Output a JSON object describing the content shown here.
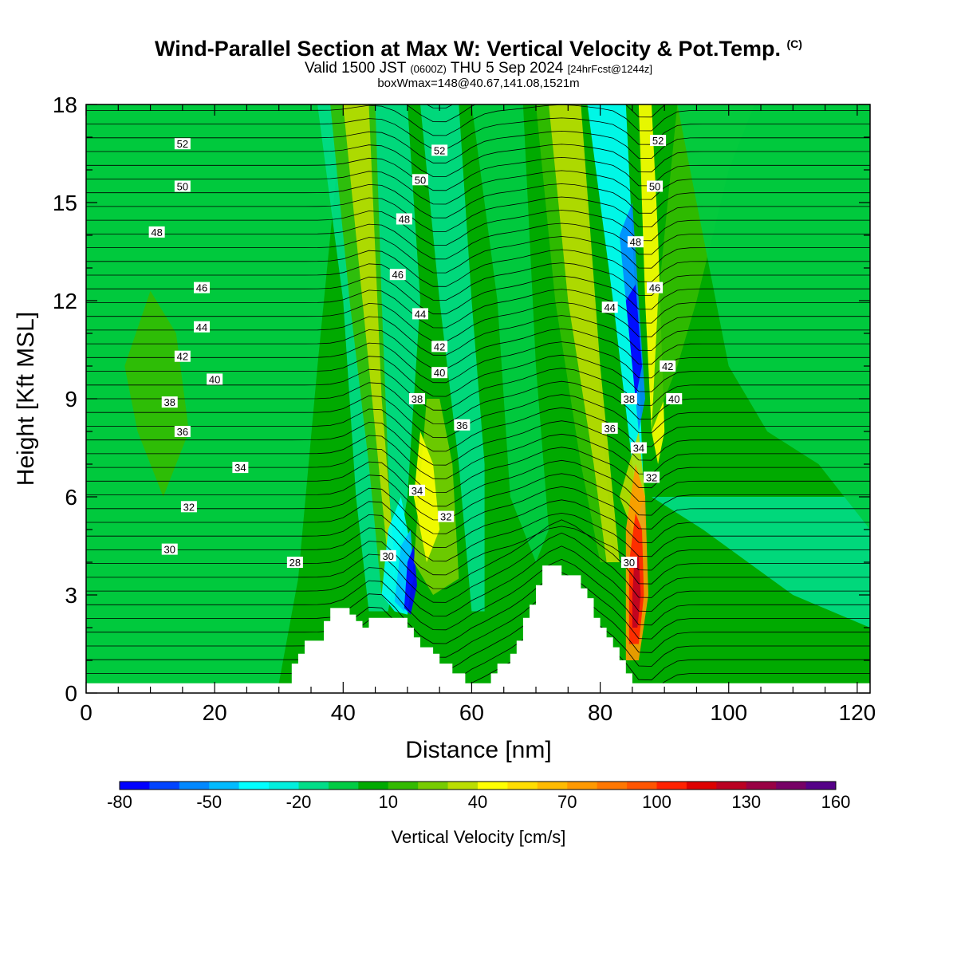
{
  "title": {
    "main": "Wind-Parallel Section at Max W: Vertical Velocity & Pot.Temp.",
    "copyright": "(C)",
    "valid_prefix": "Valid 1500 JST",
    "valid_z": "(0600Z)",
    "valid_date": "THU 5 Sep 2024",
    "fcst": "[24hrFcst@1244z]",
    "box": "boxWmax=148@40.67,141.08,1521m"
  },
  "chart_data": {
    "type": "heatmap",
    "xlabel": "Distance [nm]",
    "ylabel": "Height [Kft MSL]",
    "xlim": [
      0,
      122
    ],
    "ylim": [
      0,
      18
    ],
    "x_ticks": [
      0,
      20,
      40,
      60,
      80,
      100,
      120
    ],
    "y_ticks": [
      0,
      3,
      6,
      9,
      12,
      15,
      18
    ],
    "colorbar": {
      "label": "Vertical Velocity [cm/s]",
      "tick_labels": [
        -80,
        -50,
        -20,
        10,
        40,
        70,
        100,
        130,
        160
      ],
      "colors": [
        "#0000ff",
        "#0044ff",
        "#0088ff",
        "#00bbff",
        "#00ffff",
        "#00eedd",
        "#00dd88",
        "#00cc44",
        "#00aa00",
        "#33bb00",
        "#77cc00",
        "#bbdd00",
        "#ffff00",
        "#ffdd00",
        "#ffbb00",
        "#ff9900",
        "#ff7700",
        "#ff5500",
        "#ff2200",
        "#dd0000",
        "#bb0022",
        "#990044",
        "#770066",
        "#550088"
      ]
    },
    "terrain": [
      [
        31,
        0
      ],
      [
        31,
        0.3
      ],
      [
        32,
        0.3
      ],
      [
        32,
        0.9
      ],
      [
        33,
        0.9
      ],
      [
        33,
        1.2
      ],
      [
        34,
        1.2
      ],
      [
        34,
        1.6
      ],
      [
        37,
        1.6
      ],
      [
        37,
        2.2
      ],
      [
        38,
        2.2
      ],
      [
        38,
        2.6
      ],
      [
        41,
        2.6
      ],
      [
        41,
        2.4
      ],
      [
        42,
        2.4
      ],
      [
        42,
        2.2
      ],
      [
        43,
        2.2
      ],
      [
        43,
        2.0
      ],
      [
        44,
        2.0
      ],
      [
        44,
        2.3
      ],
      [
        50,
        2.3
      ],
      [
        50,
        2.0
      ],
      [
        51,
        2.0
      ],
      [
        51,
        1.7
      ],
      [
        52,
        1.7
      ],
      [
        52,
        1.4
      ],
      [
        54,
        1.4
      ],
      [
        54,
        1.2
      ],
      [
        55,
        1.2
      ],
      [
        55,
        0.9
      ],
      [
        57,
        0.9
      ],
      [
        57,
        0.6
      ],
      [
        59,
        0.6
      ],
      [
        59,
        0.3
      ],
      [
        60,
        0.3
      ],
      [
        60,
        0.0
      ],
      [
        61,
        0.0
      ],
      [
        61,
        0.3
      ],
      [
        63,
        0.3
      ],
      [
        63,
        0.6
      ],
      [
        64,
        0.6
      ],
      [
        64,
        0.9
      ],
      [
        66,
        0.9
      ],
      [
        66,
        1.2
      ],
      [
        67,
        1.2
      ],
      [
        67,
        1.6
      ],
      [
        68,
        1.6
      ],
      [
        68,
        2.3
      ],
      [
        69,
        2.3
      ],
      [
        69,
        2.7
      ],
      [
        70,
        2.7
      ],
      [
        70,
        3.3
      ],
      [
        71,
        3.3
      ],
      [
        71,
        3.9
      ],
      [
        74,
        3.9
      ],
      [
        74,
        3.6
      ],
      [
        77,
        3.6
      ],
      [
        77,
        3.2
      ],
      [
        78,
        3.2
      ],
      [
        78,
        2.9
      ],
      [
        79,
        2.9
      ],
      [
        79,
        2.3
      ],
      [
        80,
        2.3
      ],
      [
        80,
        2.0
      ],
      [
        81,
        2.0
      ],
      [
        81,
        1.7
      ],
      [
        82,
        1.7
      ],
      [
        82,
        1.4
      ],
      [
        83,
        1.4
      ],
      [
        83,
        1.0
      ],
      [
        84,
        1.0
      ],
      [
        84,
        0.6
      ],
      [
        85,
        0.6
      ],
      [
        85,
        0.3
      ],
      [
        86,
        0.3
      ],
      [
        86,
        0
      ]
    ],
    "theta_labels": [
      {
        "text": "52",
        "x": 15,
        "y": 16.8
      },
      {
        "text": "50",
        "x": 15,
        "y": 15.5
      },
      {
        "text": "48",
        "x": 11,
        "y": 14.1
      },
      {
        "text": "46",
        "x": 18,
        "y": 12.4
      },
      {
        "text": "44",
        "x": 18,
        "y": 11.2
      },
      {
        "text": "42",
        "x": 15,
        "y": 10.3
      },
      {
        "text": "40",
        "x": 20,
        "y": 9.6
      },
      {
        "text": "38",
        "x": 13,
        "y": 8.9
      },
      {
        "text": "36",
        "x": 15,
        "y": 8.0
      },
      {
        "text": "34",
        "x": 24,
        "y": 6.9
      },
      {
        "text": "32",
        "x": 16,
        "y": 5.7
      },
      {
        "text": "30",
        "x": 13,
        "y": 4.4
      },
      {
        "text": "28",
        "x": 32.5,
        "y": 4.0
      },
      {
        "text": "52",
        "x": 55,
        "y": 16.6
      },
      {
        "text": "50",
        "x": 52,
        "y": 15.7
      },
      {
        "text": "48",
        "x": 49.5,
        "y": 14.5
      },
      {
        "text": "46",
        "x": 48.5,
        "y": 12.8
      },
      {
        "text": "44",
        "x": 52,
        "y": 11.6
      },
      {
        "text": "42",
        "x": 55,
        "y": 10.6
      },
      {
        "text": "40",
        "x": 55,
        "y": 9.8
      },
      {
        "text": "38",
        "x": 51.5,
        "y": 9.0
      },
      {
        "text": "36",
        "x": 58.5,
        "y": 8.2
      },
      {
        "text": "34",
        "x": 51.5,
        "y": 6.2
      },
      {
        "text": "32",
        "x": 56,
        "y": 5.4
      },
      {
        "text": "30",
        "x": 47,
        "y": 4.2
      },
      {
        "text": "52",
        "x": 89,
        "y": 16.9
      },
      {
        "text": "50",
        "x": 88.5,
        "y": 15.5
      },
      {
        "text": "48",
        "x": 85.5,
        "y": 13.8
      },
      {
        "text": "46",
        "x": 88.5,
        "y": 12.4
      },
      {
        "text": "44",
        "x": 81.5,
        "y": 11.8
      },
      {
        "text": "42",
        "x": 90.5,
        "y": 10.0
      },
      {
        "text": "40",
        "x": 91.5,
        "y": 9.0
      },
      {
        "text": "38",
        "x": 84.5,
        "y": 9.0
      },
      {
        "text": "36",
        "x": 81.5,
        "y": 8.1
      },
      {
        "text": "34",
        "x": 86,
        "y": 7.5
      },
      {
        "text": "32",
        "x": 88,
        "y": 6.6
      },
      {
        "text": "30",
        "x": 84.5,
        "y": 4.0
      }
    ]
  }
}
